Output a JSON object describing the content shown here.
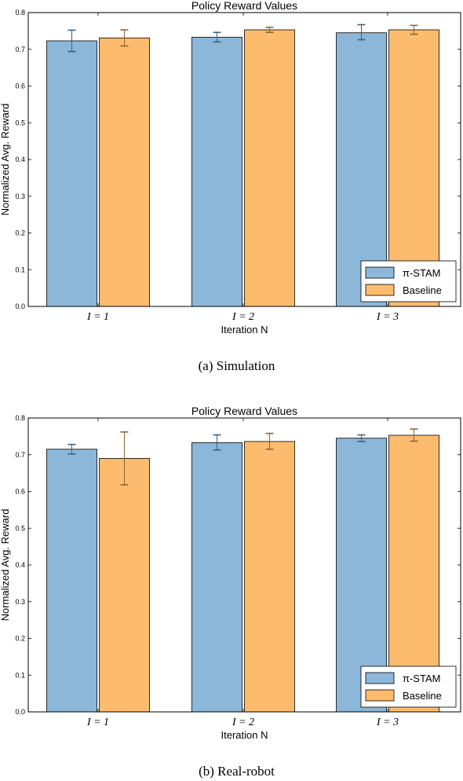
{
  "colors": {
    "pi_stam": "#8cb7d9",
    "baseline": "#fdbb6e",
    "pi_stam_err": "#3f5f78",
    "baseline_err": "#8c6434"
  },
  "chart_data": [
    {
      "type": "bar",
      "title": "Policy Reward Values",
      "xlabel": "Iteration N",
      "ylabel": "Normalized Avg. Reward",
      "caption": "(a)  Simulation",
      "categories": [
        "I = 1",
        "I = 2",
        "I = 3"
      ],
      "ylim": [
        0,
        0.8
      ],
      "yticks": [
        "0.0",
        "0.1",
        "0.2",
        "0.3",
        "0.4",
        "0.5",
        "0.6",
        "0.7",
        "0.8"
      ],
      "legend_position": "lower-right",
      "series": [
        {
          "name": "π-STAM",
          "values": [
            0.723,
            0.733,
            0.745
          ],
          "err_low": [
            0.694,
            0.72,
            0.726
          ],
          "err_high": [
            0.752,
            0.746,
            0.767
          ]
        },
        {
          "name": "Baseline",
          "values": [
            0.731,
            0.753,
            0.753
          ],
          "err_low": [
            0.709,
            0.746,
            0.741
          ],
          "err_high": [
            0.753,
            0.76,
            0.765
          ]
        }
      ]
    },
    {
      "type": "bar",
      "title": "Policy Reward Values",
      "xlabel": "Iteration N",
      "ylabel": "Normalized Avg. Reward",
      "caption": "(b)  Real-robot",
      "categories": [
        "I = 1",
        "I = 2",
        "I = 3"
      ],
      "ylim": [
        0,
        0.8
      ],
      "yticks": [
        "0.0",
        "0.1",
        "0.2",
        "0.3",
        "0.4",
        "0.5",
        "0.6",
        "0.7",
        "0.8"
      ],
      "legend_position": "lower-right",
      "series": [
        {
          "name": "π-STAM",
          "values": [
            0.715,
            0.733,
            0.745
          ],
          "err_low": [
            0.702,
            0.713,
            0.736
          ],
          "err_high": [
            0.728,
            0.754,
            0.754
          ]
        },
        {
          "name": "Baseline",
          "values": [
            0.69,
            0.736,
            0.753
          ],
          "err_low": [
            0.618,
            0.715,
            0.737
          ],
          "err_high": [
            0.762,
            0.758,
            0.77
          ]
        }
      ]
    }
  ]
}
